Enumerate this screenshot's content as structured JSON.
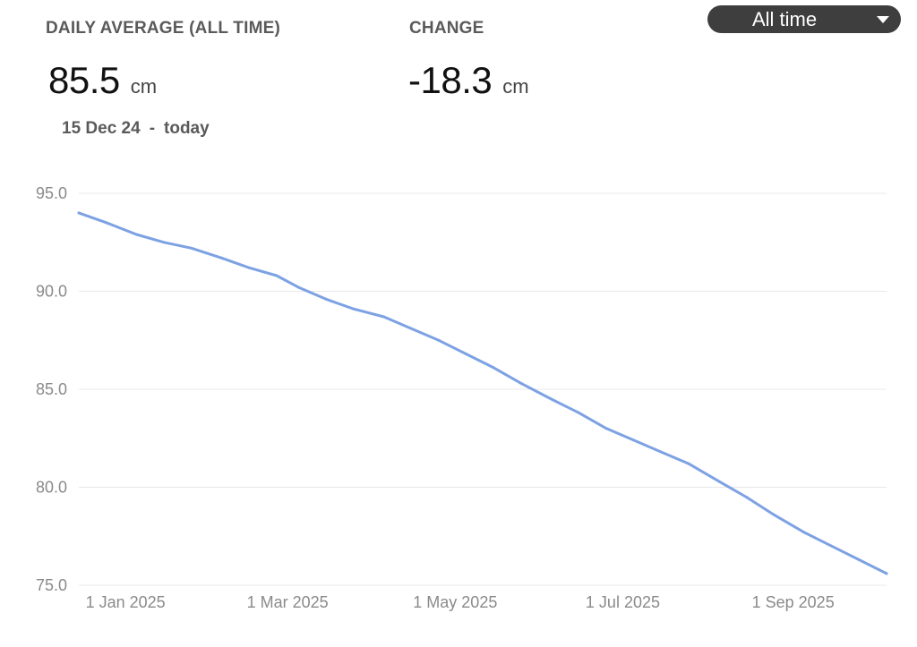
{
  "stats": {
    "average_label": "DAILY AVERAGE (ALL TIME)",
    "average_value": "85.5",
    "average_unit": "cm",
    "change_label": "CHANGE",
    "change_value": "-18.3",
    "change_unit": "cm",
    "range_start": "15 Dec 24",
    "range_sep": "-",
    "range_end": "today"
  },
  "range_select": {
    "value": "All time",
    "icon": "caret-down-icon"
  },
  "colors": {
    "line": "#7da2e3",
    "grid": "#e8e8e8",
    "axis_text": "#8a8a8a",
    "select_bg": "#3e3e3e"
  },
  "chart_data": {
    "type": "line",
    "title": "",
    "xlabel": "",
    "ylabel": "",
    "ylim": [
      75.0,
      95.0
    ],
    "xlim": [
      "2024-12-15",
      "2025-10-05"
    ],
    "y_ticks": [
      "75.0",
      "80.0",
      "85.0",
      "90.0",
      "95.0"
    ],
    "x_ticks": [
      {
        "date": "2025-01-01",
        "label": "1 Jan 2025"
      },
      {
        "date": "2025-03-01",
        "label": "1 Mar 2025"
      },
      {
        "date": "2025-05-01",
        "label": "1 May 2025"
      },
      {
        "date": "2025-07-01",
        "label": "1 Jul 2025"
      },
      {
        "date": "2025-09-01",
        "label": "1 Sep 2025"
      }
    ],
    "grid": true,
    "series": [
      {
        "x": [
          "2024-12-15",
          "2024-12-25",
          "2025-01-05",
          "2025-01-15",
          "2025-01-25",
          "2025-02-05",
          "2025-02-15",
          "2025-02-25",
          "2025-03-05",
          "2025-03-15",
          "2025-03-25",
          "2025-04-05",
          "2025-04-15",
          "2025-04-25",
          "2025-05-05",
          "2025-05-15",
          "2025-05-25",
          "2025-06-05",
          "2025-06-15",
          "2025-06-25",
          "2025-07-05",
          "2025-07-15",
          "2025-07-25",
          "2025-08-05",
          "2025-08-15",
          "2025-08-25",
          "2025-09-05",
          "2025-09-15",
          "2025-09-25",
          "2025-10-05"
        ],
        "y": [
          94.0,
          93.5,
          92.9,
          92.5,
          92.2,
          91.7,
          91.2,
          90.8,
          90.2,
          89.6,
          89.1,
          88.7,
          88.1,
          87.5,
          86.8,
          86.1,
          85.3,
          84.5,
          83.8,
          83.0,
          82.4,
          81.8,
          81.2,
          80.3,
          79.5,
          78.6,
          77.7,
          77.0,
          76.3,
          75.6
        ]
      }
    ]
  }
}
